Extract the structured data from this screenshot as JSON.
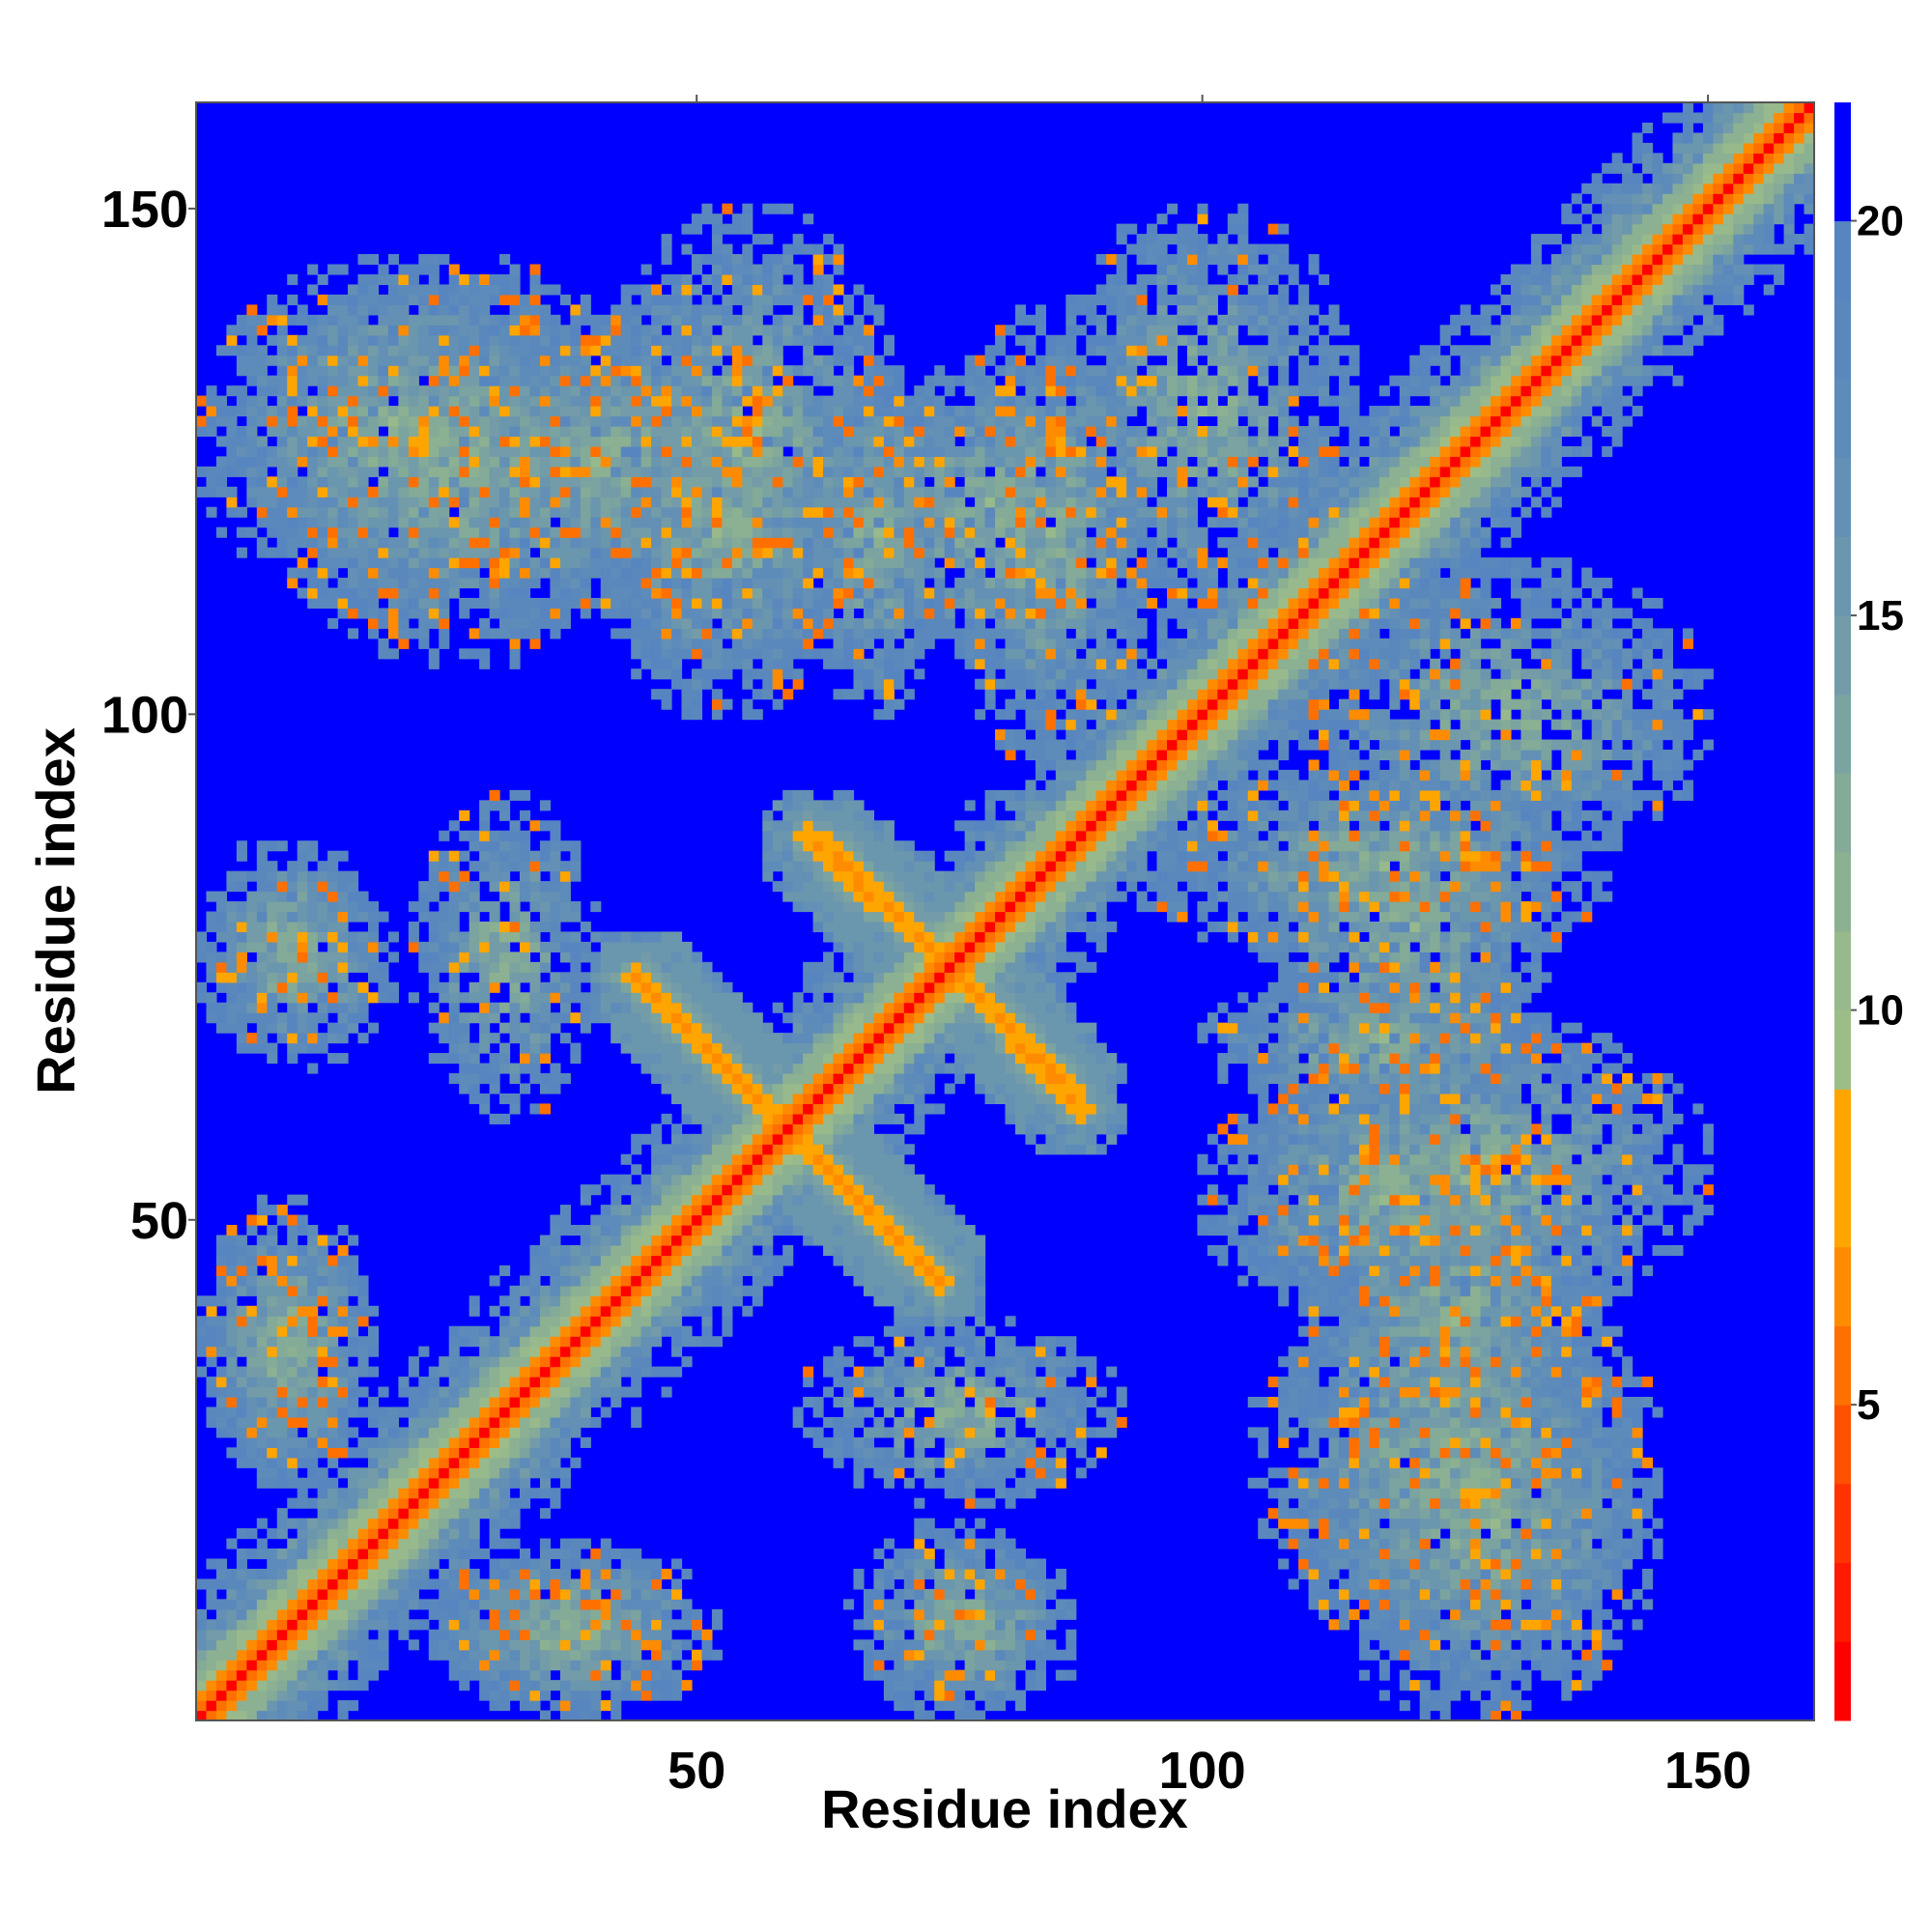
{
  "chart_data": {
    "type": "heatmap",
    "title": "",
    "xlabel": "Residue index",
    "ylabel": "Residue index",
    "xlim": [
      0.5,
      160.5
    ],
    "ylim": [
      0.5,
      160.5
    ],
    "xticks": [
      50,
      100,
      150
    ],
    "yticks": [
      50,
      100,
      150
    ],
    "n_residues": 160,
    "grid": false,
    "colorbar": {
      "placement": "right",
      "range": [
        1,
        21.5
      ],
      "ticks": [
        5,
        10,
        15,
        20
      ],
      "bands": [
        {
          "from": 1,
          "to": 2,
          "color": "#ff0000"
        },
        {
          "from": 2,
          "to": 3,
          "color": "#ff1a00"
        },
        {
          "from": 3,
          "to": 4,
          "color": "#ff3300"
        },
        {
          "from": 4,
          "to": 5,
          "color": "#ff5000"
        },
        {
          "from": 5,
          "to": 6,
          "color": "#ff7000"
        },
        {
          "from": 6,
          "to": 7,
          "color": "#ff8c00"
        },
        {
          "from": 7,
          "to": 8,
          "color": "#ffa500"
        },
        {
          "from": 8,
          "to": 9,
          "color": "#ffa500"
        },
        {
          "from": 9,
          "to": 10,
          "color": "#9dbd88"
        },
        {
          "from": 10,
          "to": 11,
          "color": "#97b98c"
        },
        {
          "from": 11,
          "to": 12,
          "color": "#8cb092"
        },
        {
          "from": 12,
          "to": 13,
          "color": "#84aa98"
        },
        {
          "from": 13,
          "to": 14,
          "color": "#7ba3a0"
        },
        {
          "from": 14,
          "to": 15,
          "color": "#739ca8"
        },
        {
          "from": 15,
          "to": 16,
          "color": "#6a96ae"
        },
        {
          "from": 16,
          "to": 17,
          "color": "#6390b4"
        },
        {
          "from": 17,
          "to": 18,
          "color": "#5d8bba"
        },
        {
          "from": 18,
          "to": 19,
          "color": "#5a88bc"
        },
        {
          "from": 19,
          "to": 20,
          "color": "#5785c0"
        },
        {
          "from": 20,
          "to": 21.5,
          "color": "#0000ff"
        }
      ]
    },
    "features": {
      "diagonal": true,
      "helix_blocks": [
        {
          "i": [
            1,
            18
          ],
          "j": [
            24,
            52
          ]
        },
        {
          "i": [
            24,
            50
          ],
          "j": [
            1,
            18
          ]
        },
        {
          "i": [
            1,
            38
          ],
          "j": [
            110,
            145
          ]
        },
        {
          "i": [
            22,
            60
          ],
          "j": [
            110,
            140
          ]
        },
        {
          "i": [
            40,
            70
          ],
          "j": [
            105,
            150
          ]
        },
        {
          "i": [
            65,
            92
          ],
          "j": [
            105,
            135
          ]
        },
        {
          "i": [
            85,
            115
          ],
          "j": [
            110,
            150
          ]
        },
        {
          "i": [
            105,
            145
          ],
          "j": [
            8,
            45
          ]
        },
        {
          "i": [
            100,
            135
          ],
          "j": [
            40,
            65
          ]
        },
        {
          "i": [
            100,
            135
          ],
          "j": [
            60,
            75
          ]
        },
        {
          "i": [
            95,
            140
          ],
          "j": [
            75,
            95
          ]
        },
        {
          "i": [
            65,
            85
          ],
          "j": [
            1,
            20
          ]
        },
        {
          "i": [
            1,
            18
          ],
          "j": [
            68,
            88
          ]
        },
        {
          "i": [
            22,
            40
          ],
          "j": [
            60,
            92
          ]
        }
      ],
      "sheet_contacts": [
        {
          "i": [
            44,
            58
          ],
          "j": [
            74,
            60
          ],
          "kind": "antiparallel"
        },
        {
          "i": [
            61,
            74
          ],
          "j": [
            88,
            76
          ],
          "kind": "antiparallel"
        },
        {
          "i": [
            60,
            73
          ],
          "j": [
            58,
            45
          ],
          "kind": "antiparallel"
        },
        {
          "i": [
            77,
            87
          ],
          "j": [
            73,
            63
          ],
          "kind": "antiparallel"
        }
      ]
    }
  }
}
